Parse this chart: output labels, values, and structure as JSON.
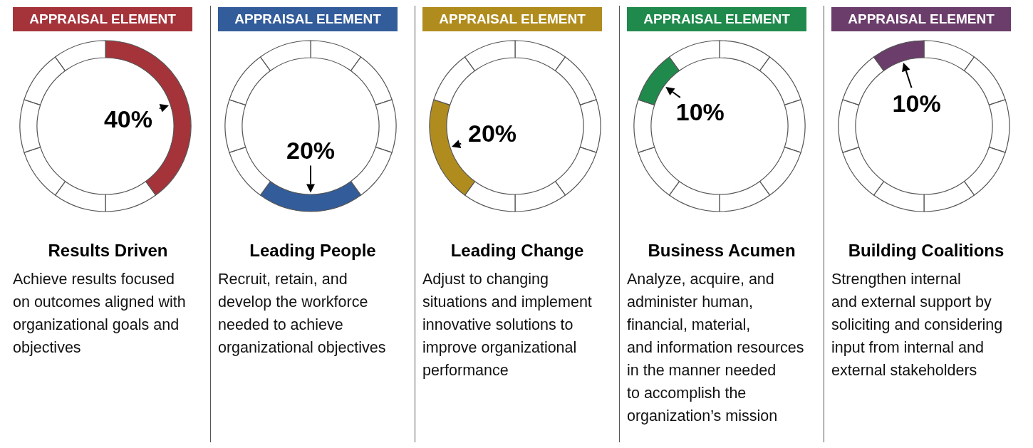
{
  "chart_data": [
    {
      "type": "donut",
      "subtitle": "APPRAISAL ELEMENT",
      "title": "Results Driven",
      "annotations": [
        "Achieve results focused\non outcomes aligned with\norganizational goals and\nobjectives"
      ],
      "categories": [
        null,
        null,
        null,
        null,
        null,
        null,
        null
      ],
      "values": [
        40,
        10,
        10,
        10,
        10,
        10,
        10
      ],
      "colors": [
        "#a4343a",
        "#ffffff",
        "#ffffff",
        "#ffffff",
        "#ffffff",
        "#ffffff",
        "#ffffff"
      ],
      "value_labels": [
        "40%",
        null,
        null,
        null,
        null,
        null,
        null
      ]
    },
    {
      "type": "donut",
      "subtitle": "APPRAISAL ELEMENT",
      "title": "Leading People",
      "annotations": [
        "Recruit, retain, and\ndevelop the workforce\nneeded to achieve\norganizational objectives"
      ],
      "categories": [
        null,
        null,
        null,
        null,
        null,
        null,
        null,
        null,
        null
      ],
      "values": [
        10,
        10,
        10,
        10,
        20,
        10,
        10,
        10,
        10
      ],
      "colors": [
        "#ffffff",
        "#ffffff",
        "#ffffff",
        "#ffffff",
        "#335c9a",
        "#ffffff",
        "#ffffff",
        "#ffffff",
        "#ffffff"
      ],
      "value_labels": [
        null,
        null,
        null,
        null,
        "20%",
        null,
        null,
        null,
        null
      ]
    },
    {
      "type": "donut",
      "subtitle": "APPRAISAL ELEMENT",
      "title": "Leading Change",
      "annotations": [
        "Adjust to changing\nsituations and implement\ninnovative solutions to\nimprove organizational\nperformance"
      ],
      "categories": [
        null,
        null,
        null,
        null,
        null,
        null,
        null,
        null,
        null
      ],
      "values": [
        10,
        10,
        10,
        10,
        10,
        10,
        20,
        10,
        10
      ],
      "colors": [
        "#ffffff",
        "#ffffff",
        "#ffffff",
        "#ffffff",
        "#ffffff",
        "#ffffff",
        "#b08c1e",
        "#ffffff",
        "#ffffff"
      ],
      "value_labels": [
        null,
        null,
        null,
        null,
        null,
        null,
        "20%",
        null,
        null
      ]
    },
    {
      "type": "donut",
      "subtitle": "APPRAISAL ELEMENT",
      "title": "Business Acumen",
      "annotations": [
        "Analyze, acquire, and\nadminister human,\nfinancial, material,\nand information resources\nin the manner needed\nto accomplish the\norganization’s mission"
      ],
      "categories": [
        null,
        null,
        null,
        null,
        null,
        null,
        null,
        null,
        null,
        null
      ],
      "values": [
        10,
        10,
        10,
        10,
        10,
        10,
        10,
        10,
        10,
        10
      ],
      "colors": [
        "#ffffff",
        "#ffffff",
        "#ffffff",
        "#ffffff",
        "#ffffff",
        "#ffffff",
        "#ffffff",
        "#ffffff",
        "#1f8a4c",
        "#ffffff"
      ],
      "value_labels": [
        null,
        null,
        null,
        null,
        null,
        null,
        null,
        null,
        "10%",
        null
      ]
    },
    {
      "type": "donut",
      "subtitle": "APPRAISAL ELEMENT",
      "title": "Building Coalitions",
      "annotations": [
        "Strengthen internal\nand external support by\nsoliciting and considering\ninput from internal and\nexternal stakeholders"
      ],
      "categories": [
        null,
        null,
        null,
        null,
        null,
        null,
        null,
        null,
        null,
        null
      ],
      "values": [
        10,
        10,
        10,
        10,
        10,
        10,
        10,
        10,
        10,
        10
      ],
      "colors": [
        "#ffffff",
        "#ffffff",
        "#ffffff",
        "#ffffff",
        "#ffffff",
        "#ffffff",
        "#ffffff",
        "#ffffff",
        "#ffffff",
        "#6a3d6b"
      ],
      "value_labels": [
        null,
        null,
        null,
        null,
        null,
        null,
        null,
        null,
        null,
        "10%"
      ]
    }
  ]
}
